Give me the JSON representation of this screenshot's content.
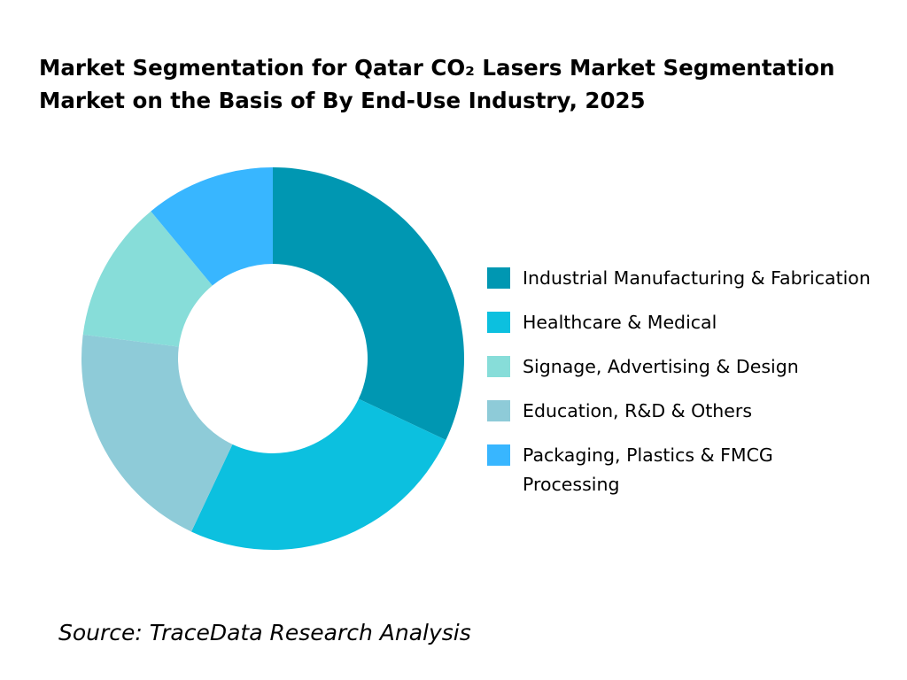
{
  "chart_data": {
    "type": "pie",
    "donut": true,
    "title_line1": "Market Segmentation for Qatar CO₂ Lasers Market Segmentation",
    "title_line2": "Market on the Basis of By End-Use Industry, 2025",
    "legend_position": "right",
    "slices": [
      {
        "label": "Industrial Manufacturing & Fabrication",
        "value": 32,
        "color": "#0097B2"
      },
      {
        "label": "Healthcare & Medical",
        "value": 25,
        "color": "#0CC0DF"
      },
      {
        "label": "Education, R&D & Others",
        "value": 20,
        "color": "#8ECBD8"
      },
      {
        "label": "Signage, Advertising & Design",
        "value": 12,
        "color": "#87DDD9"
      },
      {
        "label": "Packaging, Plastics & FMCG Processing",
        "value": 11,
        "color": "#38B6FF"
      }
    ],
    "legend_order": [
      0,
      1,
      3,
      2,
      4
    ]
  },
  "source": "Source: TraceData Research Analysis"
}
